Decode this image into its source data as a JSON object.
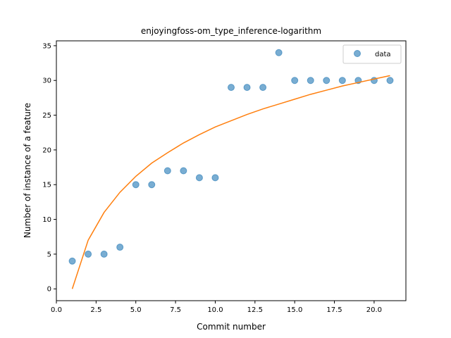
{
  "chart_data": {
    "type": "scatter",
    "title": "enjoyingfoss-om_type_inference-logarithm",
    "xlabel": "Commit number",
    "ylabel": "Number of instance of a feature",
    "xlim": [
      0.0,
      22.0
    ],
    "ylim": [
      -1.7,
      35.7
    ],
    "x_ticks": [
      0.0,
      2.5,
      5.0,
      7.5,
      10.0,
      12.5,
      15.0,
      17.5,
      20.0
    ],
    "x_tick_labels": [
      "0.0",
      "2.5",
      "5.0",
      "7.5",
      "10.0",
      "12.5",
      "15.0",
      "17.5",
      "20.0"
    ],
    "y_ticks": [
      0,
      5,
      10,
      15,
      20,
      25,
      30,
      35
    ],
    "y_tick_labels": [
      "0",
      "5",
      "10",
      "15",
      "20",
      "25",
      "30",
      "35"
    ],
    "grid": false,
    "legend_position": "top-right",
    "series": [
      {
        "name": "data",
        "kind": "scatter",
        "color": "#1f77b4",
        "x": [
          1,
          2,
          3,
          4,
          5,
          6,
          7,
          8,
          9,
          10,
          11,
          12,
          13,
          14,
          15,
          16,
          17,
          18,
          19,
          20,
          21
        ],
        "y": [
          4,
          5,
          5,
          6,
          15,
          15,
          17,
          17,
          16,
          16,
          29,
          29,
          29,
          34,
          30,
          30,
          30,
          30,
          30,
          30,
          30
        ]
      },
      {
        "kind": "line",
        "color": "#ff7f0e",
        "x": [
          1,
          2,
          3,
          4,
          5,
          6,
          7,
          8,
          9,
          10,
          11,
          12,
          13,
          14,
          15,
          16,
          17,
          18,
          19,
          20,
          21
        ],
        "y": [
          0.0,
          7.0,
          11.0,
          13.9,
          16.2,
          18.1,
          19.6,
          21.0,
          22.2,
          23.3,
          24.2,
          25.1,
          25.9,
          26.6,
          27.3,
          28.0,
          28.6,
          29.2,
          29.7,
          30.2,
          30.7
        ]
      }
    ]
  }
}
